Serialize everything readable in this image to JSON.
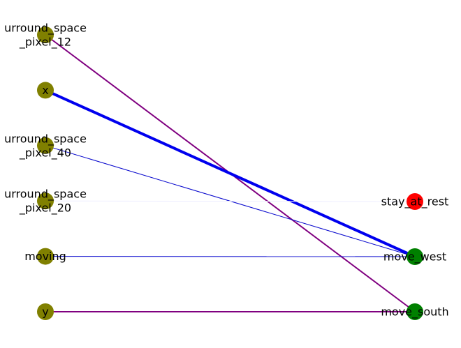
{
  "diagram": {
    "colors": {
      "input_node": "#808000",
      "output_active": "#008000",
      "output_inactive": "#ff0000",
      "label": "#000000"
    },
    "input_nodes": [
      {
        "id": "surround_space_pixel_12",
        "label_lines": [
          "urround_space",
          "_pixel_12"
        ]
      },
      {
        "id": "x",
        "label_lines": [
          "x"
        ]
      },
      {
        "id": "surround_space_pixel_40",
        "label_lines": [
          "urround_space",
          "_pixel_40"
        ]
      },
      {
        "id": "surround_space_pixel_20",
        "label_lines": [
          "urround_space",
          "_pixel_20"
        ]
      },
      {
        "id": "moving",
        "label_lines": [
          "moving"
        ]
      },
      {
        "id": "y",
        "label_lines": [
          "y"
        ]
      }
    ],
    "output_nodes": [
      {
        "id": "stay_at_rest",
        "label_lines": [
          "stay_at_rest"
        ],
        "state": "inactive"
      },
      {
        "id": "move_west",
        "label_lines": [
          "move_west"
        ],
        "state": "active"
      },
      {
        "id": "move_south",
        "label_lines": [
          "move_south"
        ],
        "state": "active"
      }
    ],
    "edges": [
      {
        "from": "surround_space_pixel_12",
        "to": "move_south",
        "color": "#800080",
        "weight": 2
      },
      {
        "from": "x",
        "to": "move_west",
        "color": "#0000ee",
        "weight": 4
      },
      {
        "from": "surround_space_pixel_40",
        "to": "move_west",
        "color": "#0000cc",
        "weight": 1
      },
      {
        "from": "surround_space_pixel_20",
        "to": "stay_at_rest",
        "color": "#eeeeff",
        "weight": 1
      },
      {
        "from": "moving",
        "to": "move_west",
        "color": "#0000cc",
        "weight": 1
      },
      {
        "from": "y",
        "to": "move_south",
        "color": "#800080",
        "weight": 2
      }
    ]
  }
}
